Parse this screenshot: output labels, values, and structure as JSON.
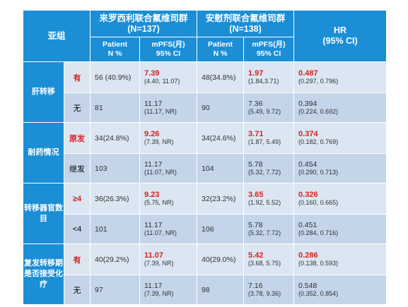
{
  "header": {
    "subgroup": "亚组",
    "group1": {
      "title": "来罗西利联合氟维司群",
      "n": "(N=137)"
    },
    "group2": {
      "title": "安慰剂联合氟维司群",
      "n": "(N=138)"
    },
    "hr": {
      "title": "HR",
      "ci": "(95% CI)"
    },
    "patient_label": "Patient",
    "patient_unit": "N %",
    "mpfs_label": "mPFS(月)",
    "mpfs_ci": "95% CI"
  },
  "groups": [
    {
      "label": "肝转移",
      "rows": [
        {
          "sub": "有",
          "highlight": true,
          "g1_n": "56 (40.9%)",
          "g1_mpfs": "7.39",
          "g1_ci": "(4.40, 11.07)",
          "g2_n": "48(34.8%)",
          "g2_mpfs": "1.97",
          "g2_ci": "(1.84,3.71)",
          "hr": "0.487",
          "hr_ci": "(0.297, 0.796)"
        },
        {
          "sub": "无",
          "highlight": false,
          "g1_n": "81",
          "g1_mpfs": "11.17",
          "g1_ci": "(11.17, NR)",
          "g2_n": "90",
          "g2_mpfs": "7.36",
          "g2_ci": "(5.49, 9.72)",
          "hr": "0.394",
          "hr_ci": "(0.224, 0.692)"
        }
      ]
    },
    {
      "label": "耐药情况",
      "rows": [
        {
          "sub": "原发",
          "highlight": true,
          "g1_n": "34(24.8%)",
          "g1_mpfs": "9.26",
          "g1_ci": "(7.39, NR)",
          "g2_n": "34(24.6%)",
          "g2_mpfs": "3.71",
          "g2_ci": "(1.87, 5.49)",
          "hr": "0.374",
          "hr_ci": "(0.182, 0.769)"
        },
        {
          "sub": "继发",
          "highlight": false,
          "g1_n": "103",
          "g1_mpfs": "11.17",
          "g1_ci": "(11.07, NR)",
          "g2_n": "104",
          "g2_mpfs": "5.78",
          "g2_ci": "(5.32, 7.72)",
          "hr": "0.454",
          "hr_ci": "(0.290, 0.713)"
        }
      ]
    },
    {
      "label": "转移器官数目",
      "rows": [
        {
          "sub": "≥4",
          "highlight": true,
          "g1_n": "36(26.3%)",
          "g1_mpfs": "9.23",
          "g1_ci": "(5.75, NR)",
          "g2_n": "32(23.2%)",
          "g2_mpfs": "3.65",
          "g2_ci": "(1.92, 5.52)",
          "hr": "0.326",
          "hr_ci": "(0.160, 0.665)"
        },
        {
          "sub": "<4",
          "highlight": false,
          "g1_n": "101",
          "g1_mpfs": "11.17",
          "g1_ci": "(11.07, NR)",
          "g2_n": "106",
          "g2_mpfs": "5.78",
          "g2_ci": "(5.32, 7.72)",
          "hr": "0.451",
          "hr_ci": "(0.284, 0.716)"
        }
      ]
    },
    {
      "label": "复发转移期是否接受化疗",
      "rows": [
        {
          "sub": "有",
          "highlight": true,
          "g1_n": "40(29.2%)",
          "g1_mpfs": "11.07",
          "g1_ci": "(7.39, NR)",
          "g2_n": "40(29.0%)",
          "g2_mpfs": "5.42",
          "g2_ci": "(3.68, 5.75)",
          "hr": "0.286",
          "hr_ci": "(0.138, 0.593)"
        },
        {
          "sub": "无",
          "highlight": false,
          "g1_n": "97",
          "g1_mpfs": "11.17",
          "g1_ci": "(7.39, NR)",
          "g2_n": "98",
          "g2_mpfs": "7.16",
          "g2_ci": "(3.78, 9.36)",
          "hr": "0.548",
          "hr_ci": "(0.352, 0.854)"
        }
      ]
    }
  ],
  "colors": {
    "header_bg": "#1b8ed6",
    "row_light": "#dbe6f2",
    "row_dark": "#c4d5ea",
    "highlight_red": "#d6221f"
  }
}
